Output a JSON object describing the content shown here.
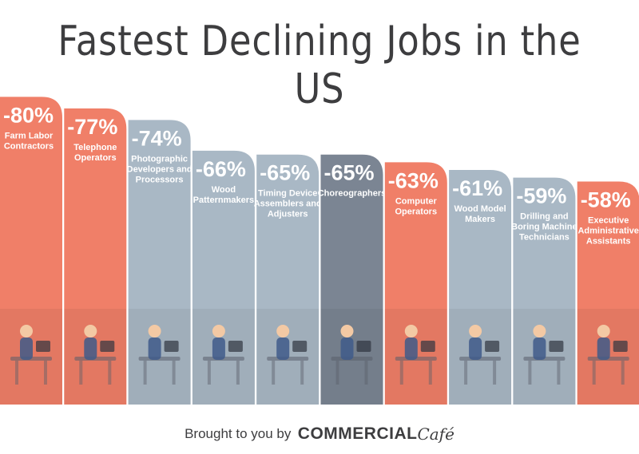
{
  "title": "Fastest Declining Jobs in the US",
  "footer": {
    "prefix": "Brought to you by",
    "brand": "COMMERCIAL",
    "brand_suffix": "Café"
  },
  "colors": {
    "coral": "#f07f68",
    "slate": "#a9b8c5",
    "dark": "#7b8593",
    "text": "#3d3d3f"
  },
  "chart_data": {
    "type": "bar",
    "unit": "%",
    "categories": [
      "Farm Labor Contractors",
      "Telephone Operators",
      "Photographic Developers and Processors",
      "Wood Patternmakers",
      "Timing Device Assemblers and Adjusters",
      "Choreographers",
      "Computer Operators",
      "Wood Model Makers",
      "Drilling and Boring Machine Technicians",
      "Executive Administrative Assistants"
    ],
    "values": [
      -80,
      -77,
      -74,
      -66,
      -65,
      -65,
      -63,
      -61,
      -59,
      -58
    ],
    "value_labels": [
      "-80%",
      "-77%",
      "-74%",
      "-66%",
      "-65%",
      "-65%",
      "-63%",
      "-61%",
      "-59%",
      "-58%"
    ],
    "label_lines": [
      [
        "Farm Labor",
        "Contractors"
      ],
      [
        "Telephone",
        "Operators"
      ],
      [
        "Photographic",
        "Developers and",
        "Processors"
      ],
      [
        "Wood",
        "Patternmakers"
      ],
      [
        "Timing Device",
        "Assemblers and",
        "Adjusters"
      ],
      [
        "Choreographers"
      ],
      [
        "Computer",
        "Operators"
      ],
      [
        "Wood Model",
        "Makers"
      ],
      [
        "Drilling and",
        "Boring Machine",
        "Technicians"
      ],
      [
        "Executive",
        "Administrative",
        "Assistants"
      ]
    ],
    "bar_colors": [
      "coral",
      "coral",
      "slate",
      "slate",
      "slate",
      "dark",
      "coral",
      "slate",
      "slate",
      "coral"
    ],
    "icons": [
      "farm-scene-icon",
      "telephone-operator-icon",
      "camera-equipment-icon",
      "woodworker-icon",
      "watchmaker-icon",
      "dancers-icon",
      "computer-operator-icon",
      "model-maker-icon",
      "driller-icon",
      "executive-assistant-icon"
    ]
  }
}
